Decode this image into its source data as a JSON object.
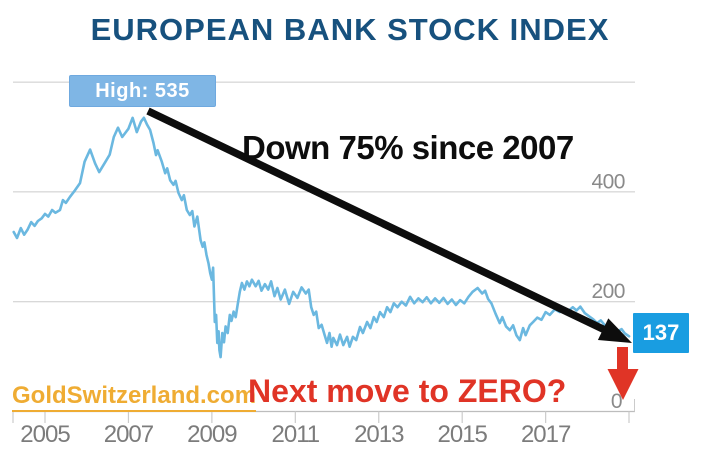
{
  "title": {
    "text": "EUROPEAN BANK STOCK INDEX",
    "color": "#17517E"
  },
  "annotations": {
    "high_badge": "High: 535",
    "down_text": "Down 75% since 2007",
    "next_move_text": "Next move to ZERO?",
    "last_value_label": "137",
    "watermark": "GoldSwitzerland.com"
  },
  "colors": {
    "background": "#FFFFFF",
    "title_navy": "#17517E",
    "series_blue": "#6BB8E0",
    "high_badge_bg": "#7FB6E5",
    "high_badge_border": "#6FA9DF",
    "value_badge_bg": "#199DE1",
    "annotation_black": "#0D0D0D",
    "annotation_red": "#E03426",
    "watermark_gold": "#EFAC33",
    "gridline_gray": "#CBCBCB",
    "axis_gray": "#BDBDBD",
    "tick_label_gray": "#7C7C7C",
    "y_label_gray": "#8A8A8A"
  },
  "chart_data": {
    "type": "line",
    "title": "EUROPEAN BANK STOCK INDEX",
    "xlabel": "",
    "ylabel": "",
    "x_axis": {
      "tick_labels": [
        "2005",
        "2007",
        "2009",
        "2011",
        "2013",
        "2015",
        "2017"
      ],
      "tick_years": [
        2005,
        2007,
        2009,
        2011,
        2013,
        2015,
        2017
      ],
      "range": [
        2004.2,
        2019.1
      ]
    },
    "y_axis": {
      "tick_labels": [
        "400",
        "200",
        "0"
      ],
      "tick_values": [
        400,
        200,
        0
      ],
      "gridline_values": [
        600,
        400,
        200
      ],
      "range": [
        0,
        620
      ]
    },
    "grid": "horizontal",
    "legend": "none",
    "high": {
      "label": "High: 535",
      "value": 535,
      "year": 2007.4
    },
    "last": {
      "label": "137",
      "value": 137,
      "year": 2019.0
    },
    "decline_pct_annotation": "Down 75% since 2007",
    "series": [
      {
        "name": "European Bank Stock Index",
        "points": [
          [
            2004.25,
            327
          ],
          [
            2004.33,
            316
          ],
          [
            2004.42,
            334
          ],
          [
            2004.5,
            322
          ],
          [
            2004.58,
            331
          ],
          [
            2004.67,
            345
          ],
          [
            2004.75,
            338
          ],
          [
            2004.83,
            347
          ],
          [
            2004.92,
            352
          ],
          [
            2005.0,
            360
          ],
          [
            2005.08,
            355
          ],
          [
            2005.17,
            367
          ],
          [
            2005.25,
            362
          ],
          [
            2005.36,
            367
          ],
          [
            2005.43,
            385
          ],
          [
            2005.5,
            380
          ],
          [
            2005.6,
            391
          ],
          [
            2005.72,
            403
          ],
          [
            2005.84,
            416
          ],
          [
            2005.95,
            455
          ],
          [
            2006.08,
            477
          ],
          [
            2006.2,
            452
          ],
          [
            2006.3,
            436
          ],
          [
            2006.45,
            455
          ],
          [
            2006.55,
            468
          ],
          [
            2006.65,
            500
          ],
          [
            2006.75,
            517
          ],
          [
            2006.85,
            500
          ],
          [
            2007.0,
            515
          ],
          [
            2007.1,
            535
          ],
          [
            2007.2,
            509
          ],
          [
            2007.3,
            528
          ],
          [
            2007.37,
            535
          ],
          [
            2007.45,
            522
          ],
          [
            2007.52,
            513
          ],
          [
            2007.6,
            489
          ],
          [
            2007.66,
            467
          ],
          [
            2007.7,
            476
          ],
          [
            2007.8,
            455
          ],
          [
            2007.88,
            434
          ],
          [
            2007.93,
            443
          ],
          [
            2008.0,
            421
          ],
          [
            2008.08,
            413
          ],
          [
            2008.13,
            420
          ],
          [
            2008.2,
            398
          ],
          [
            2008.28,
            385
          ],
          [
            2008.33,
            394
          ],
          [
            2008.4,
            367
          ],
          [
            2008.47,
            358
          ],
          [
            2008.53,
            365
          ],
          [
            2008.58,
            337
          ],
          [
            2008.65,
            355
          ],
          [
            2008.73,
            312
          ],
          [
            2008.78,
            300
          ],
          [
            2008.82,
            308
          ],
          [
            2008.87,
            285
          ],
          [
            2008.92,
            270
          ],
          [
            2008.96,
            252
          ],
          [
            2009.0,
            240
          ],
          [
            2009.03,
            262
          ],
          [
            2009.07,
            163
          ],
          [
            2009.1,
            176
          ],
          [
            2009.13,
            125
          ],
          [
            2009.16,
            146
          ],
          [
            2009.18,
            112
          ],
          [
            2009.21,
            99
          ],
          [
            2009.25,
            143
          ],
          [
            2009.29,
            126
          ],
          [
            2009.33,
            155
          ],
          [
            2009.38,
            143
          ],
          [
            2009.43,
            176
          ],
          [
            2009.47,
            165
          ],
          [
            2009.52,
            182
          ],
          [
            2009.57,
            172
          ],
          [
            2009.62,
            195
          ],
          [
            2009.67,
            218
          ],
          [
            2009.72,
            234
          ],
          [
            2009.78,
            222
          ],
          [
            2009.84,
            237
          ],
          [
            2009.9,
            228
          ],
          [
            2009.96,
            240
          ],
          [
            2010.05,
            228
          ],
          [
            2010.12,
            238
          ],
          [
            2010.19,
            220
          ],
          [
            2010.27,
            232
          ],
          [
            2010.35,
            222
          ],
          [
            2010.42,
            237
          ],
          [
            2010.5,
            210
          ],
          [
            2010.57,
            225
          ],
          [
            2010.65,
            204
          ],
          [
            2010.75,
            222
          ],
          [
            2010.85,
            196
          ],
          [
            2010.95,
            218
          ],
          [
            2011.05,
            207
          ],
          [
            2011.15,
            226
          ],
          [
            2011.25,
            215
          ],
          [
            2011.32,
            222
          ],
          [
            2011.38,
            190
          ],
          [
            2011.44,
            176
          ],
          [
            2011.5,
            182
          ],
          [
            2011.56,
            152
          ],
          [
            2011.63,
            158
          ],
          [
            2011.7,
            140
          ],
          [
            2011.76,
            125
          ],
          [
            2011.82,
            143
          ],
          [
            2011.87,
            118
          ],
          [
            2011.91,
            134
          ],
          [
            2012.0,
            121
          ],
          [
            2012.07,
            140
          ],
          [
            2012.15,
            121
          ],
          [
            2012.24,
            136
          ],
          [
            2012.3,
            118
          ],
          [
            2012.38,
            136
          ],
          [
            2012.46,
            130
          ],
          [
            2012.55,
            154
          ],
          [
            2012.62,
            143
          ],
          [
            2012.72,
            163
          ],
          [
            2012.8,
            152
          ],
          [
            2012.88,
            172
          ],
          [
            2012.95,
            163
          ],
          [
            2013.03,
            181
          ],
          [
            2013.12,
            172
          ],
          [
            2013.2,
            190
          ],
          [
            2013.28,
            181
          ],
          [
            2013.36,
            197
          ],
          [
            2013.45,
            190
          ],
          [
            2013.55,
            200
          ],
          [
            2013.65,
            193
          ],
          [
            2013.75,
            209
          ],
          [
            2013.85,
            197
          ],
          [
            2013.95,
            206
          ],
          [
            2014.05,
            199
          ],
          [
            2014.15,
            208
          ],
          [
            2014.25,
            197
          ],
          [
            2014.35,
            206
          ],
          [
            2014.45,
            198
          ],
          [
            2014.55,
            207
          ],
          [
            2014.65,
            196
          ],
          [
            2014.75,
            204
          ],
          [
            2014.85,
            194
          ],
          [
            2014.95,
            203
          ],
          [
            2015.05,
            197
          ],
          [
            2015.15,
            209
          ],
          [
            2015.25,
            218
          ],
          [
            2015.37,
            225
          ],
          [
            2015.48,
            215
          ],
          [
            2015.55,
            220
          ],
          [
            2015.62,
            205
          ],
          [
            2015.7,
            197
          ],
          [
            2015.8,
            178
          ],
          [
            2015.9,
            161
          ],
          [
            2015.96,
            172
          ],
          [
            2016.05,
            155
          ],
          [
            2016.14,
            148
          ],
          [
            2016.22,
            157
          ],
          [
            2016.3,
            139
          ],
          [
            2016.38,
            130
          ],
          [
            2016.46,
            152
          ],
          [
            2016.52,
            139
          ],
          [
            2016.62,
            157
          ],
          [
            2016.7,
            163
          ],
          [
            2016.8,
            171
          ],
          [
            2016.9,
            167
          ],
          [
            2017.0,
            181
          ],
          [
            2017.1,
            176
          ],
          [
            2017.22,
            186
          ],
          [
            2017.34,
            181
          ],
          [
            2017.45,
            188
          ],
          [
            2017.56,
            184
          ],
          [
            2017.65,
            190
          ],
          [
            2017.74,
            184
          ],
          [
            2017.83,
            191
          ],
          [
            2017.94,
            179
          ],
          [
            2018.05,
            173
          ],
          [
            2018.14,
            168
          ],
          [
            2018.23,
            161
          ],
          [
            2018.32,
            166
          ],
          [
            2018.42,
            157
          ],
          [
            2018.52,
            148
          ],
          [
            2018.62,
            154
          ],
          [
            2018.72,
            146
          ],
          [
            2018.82,
            150
          ],
          [
            2018.9,
            142
          ],
          [
            2019.0,
            137
          ]
        ]
      }
    ]
  }
}
